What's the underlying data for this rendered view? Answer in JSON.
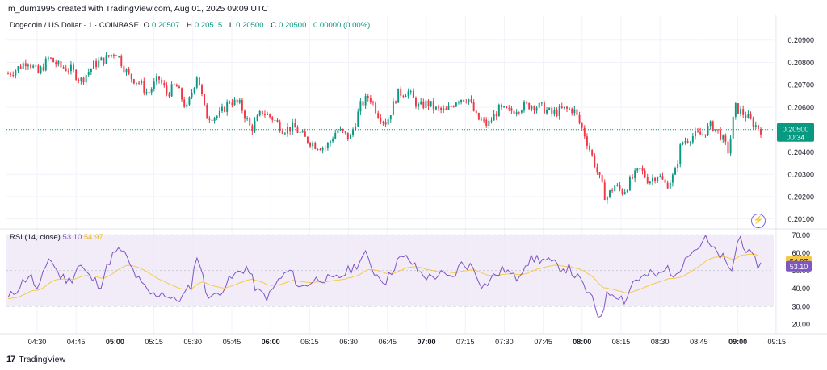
{
  "attribution": "m_dum1995 created with TradingView.com, Aug 01, 2025 09:09 UTC",
  "header": {
    "symbol": "Dogecoin / US Dollar · 1 · COINBASE",
    "open_label": "O",
    "open": "0.20507",
    "high_label": "H",
    "high": "0.20515",
    "low_label": "L",
    "low": "0.20500",
    "close_label": "C",
    "close": "0.20500",
    "change": "0.00000 (0.00%)"
  },
  "price_tag": {
    "value": "0.20500",
    "timer": "00:34"
  },
  "rsi": {
    "label": "RSI (14, close)",
    "rsi_value": "53.10",
    "ma_value": "54.97"
  },
  "brand": {
    "logo": "17",
    "name": "TradingView"
  },
  "colors": {
    "up": "#089981",
    "down": "#f23645",
    "rsi_line": "#7e57c2",
    "rsi_ma": "#f7c948",
    "rsi_band": "#ede7f6"
  },
  "icons": {
    "lightning": "lightning-bolt-icon",
    "logo": "tradingview-logo-icon"
  },
  "chart_data": [
    {
      "type": "candlestick",
      "title": "Dogecoin / US Dollar · 1 · COINBASE",
      "xlabel": "",
      "ylabel": "",
      "ylim": [
        0.2007,
        0.21
      ],
      "y_ticks": [
        "0.20900",
        "0.20800",
        "0.20700",
        "0.20600",
        "0.20500",
        "0.20400",
        "0.20300",
        "0.20200",
        "0.20100"
      ],
      "x_ticks": [
        "04:30",
        "04:45",
        "05:00",
        "05:15",
        "05:30",
        "05:45",
        "06:00",
        "06:15",
        "06:30",
        "06:45",
        "07:00",
        "07:15",
        "07:30",
        "07:45",
        "08:00",
        "08:15",
        "08:30",
        "08:45",
        "09:00",
        "09:15"
      ],
      "x_ticks_bold": [
        "05:00",
        "06:00",
        "07:00",
        "08:00",
        "09:00"
      ],
      "last_price": 0.205,
      "path": [
        [
          0,
          0.2075
        ],
        [
          8,
          0.2077
        ],
        [
          18,
          0.2081
        ],
        [
          28,
          0.2075
        ],
        [
          38,
          0.2082
        ],
        [
          48,
          0.2078
        ],
        [
          58,
          0.2077
        ],
        [
          68,
          0.2072
        ],
        [
          80,
          0.2079
        ],
        [
          92,
          0.2082
        ],
        [
          100,
          0.2085
        ],
        [
          112,
          0.2074
        ],
        [
          122,
          0.2071
        ],
        [
          130,
          0.2066
        ],
        [
          140,
          0.2073
        ],
        [
          148,
          0.2066
        ],
        [
          156,
          0.207
        ],
        [
          166,
          0.2059
        ],
        [
          176,
          0.2075
        ],
        [
          184,
          0.2056
        ],
        [
          196,
          0.2056
        ],
        [
          206,
          0.2063
        ],
        [
          216,
          0.2061
        ],
        [
          226,
          0.205
        ],
        [
          236,
          0.2058
        ],
        [
          246,
          0.2055
        ],
        [
          256,
          0.205
        ],
        [
          266,
          0.2051
        ],
        [
          276,
          0.2046
        ],
        [
          286,
          0.2043
        ],
        [
          296,
          0.2042
        ],
        [
          306,
          0.205
        ],
        [
          318,
          0.2046
        ],
        [
          328,
          0.2061
        ],
        [
          336,
          0.2065
        ],
        [
          344,
          0.2057
        ],
        [
          352,
          0.2053
        ],
        [
          362,
          0.2066
        ],
        [
          372,
          0.2067
        ],
        [
          382,
          0.206
        ],
        [
          390,
          0.2062
        ],
        [
          398,
          0.2059
        ],
        [
          408,
          0.2058
        ],
        [
          418,
          0.2064
        ],
        [
          428,
          0.2064
        ],
        [
          436,
          0.2055
        ],
        [
          446,
          0.2052
        ],
        [
          456,
          0.2059
        ],
        [
          466,
          0.2058
        ],
        [
          476,
          0.206
        ],
        [
          486,
          0.2061
        ],
        [
          496,
          0.206
        ],
        [
          506,
          0.2057
        ],
        [
          516,
          0.2059
        ],
        [
          526,
          0.2059
        ],
        [
          536,
          0.2048
        ],
        [
          546,
          0.2034
        ],
        [
          556,
          0.2019
        ],
        [
          564,
          0.2025
        ],
        [
          572,
          0.2022
        ],
        [
          580,
          0.2028
        ],
        [
          588,
          0.2032
        ],
        [
          596,
          0.2027
        ],
        [
          604,
          0.203
        ],
        [
          612,
          0.2025
        ],
        [
          620,
          0.203
        ],
        [
          626,
          0.2044
        ],
        [
          636,
          0.2047
        ],
        [
          646,
          0.2048
        ],
        [
          654,
          0.2052
        ],
        [
          662,
          0.2048
        ],
        [
          670,
          0.204
        ],
        [
          676,
          0.206
        ],
        [
          684,
          0.2057
        ],
        [
          692,
          0.2053
        ],
        [
          700,
          0.205
        ]
      ],
      "path_x_unit": "bar index (1-minute candles from ~04:23)"
    },
    {
      "type": "line",
      "title": "RSI (14, close)",
      "ylim": [
        15,
        72
      ],
      "y_ticks": [
        "70.00",
        "60.00",
        "50.00",
        "40.00",
        "30.00",
        "20.00"
      ],
      "bands": [
        30,
        70
      ],
      "mid_line": 50,
      "series": [
        {
          "name": "RSI",
          "last": 53.1
        },
        {
          "name": "RSI-based MA",
          "last": 54.97
        }
      ],
      "rsi_path": [
        [
          0,
          34
        ],
        [
          10,
          41
        ],
        [
          20,
          48
        ],
        [
          28,
          38
        ],
        [
          38,
          58
        ],
        [
          48,
          47
        ],
        [
          58,
          44
        ],
        [
          66,
          54
        ],
        [
          76,
          46
        ],
        [
          86,
          42
        ],
        [
          96,
          58
        ],
        [
          106,
          62
        ],
        [
          114,
          52
        ],
        [
          124,
          42
        ],
        [
          134,
          36
        ],
        [
          144,
          38
        ],
        [
          154,
          33
        ],
        [
          162,
          35
        ],
        [
          170,
          41
        ],
        [
          176,
          60
        ],
        [
          184,
          38
        ],
        [
          192,
          35
        ],
        [
          202,
          42
        ],
        [
          212,
          48
        ],
        [
          222,
          52
        ],
        [
          232,
          38
        ],
        [
          242,
          35
        ],
        [
          252,
          45
        ],
        [
          262,
          50
        ],
        [
          272,
          40
        ],
        [
          282,
          44
        ],
        [
          292,
          46
        ],
        [
          302,
          44
        ],
        [
          312,
          48
        ],
        [
          322,
          52
        ],
        [
          332,
          59
        ],
        [
          342,
          48
        ],
        [
          352,
          44
        ],
        [
          362,
          56
        ],
        [
          372,
          57
        ],
        [
          382,
          49
        ],
        [
          392,
          46
        ],
        [
          402,
          48
        ],
        [
          412,
          45
        ],
        [
          422,
          54
        ],
        [
          432,
          52
        ],
        [
          442,
          41
        ],
        [
          452,
          47
        ],
        [
          462,
          51
        ],
        [
          472,
          45
        ],
        [
          482,
          55
        ],
        [
          492,
          57
        ],
        [
          502,
          55
        ],
        [
          512,
          52
        ],
        [
          522,
          51
        ],
        [
          532,
          44
        ],
        [
          542,
          35
        ],
        [
          550,
          23
        ],
        [
          558,
          38
        ],
        [
          566,
          37
        ],
        [
          574,
          33
        ],
        [
          582,
          45
        ],
        [
          590,
          46
        ],
        [
          598,
          48
        ],
        [
          606,
          47
        ],
        [
          614,
          52
        ],
        [
          622,
          45
        ],
        [
          630,
          60
        ],
        [
          640,
          62
        ],
        [
          648,
          68
        ],
        [
          656,
          61
        ],
        [
          664,
          58
        ],
        [
          672,
          48
        ],
        [
          680,
          70
        ],
        [
          688,
          60
        ],
        [
          696,
          54
        ],
        [
          700,
          53
        ]
      ]
    }
  ]
}
